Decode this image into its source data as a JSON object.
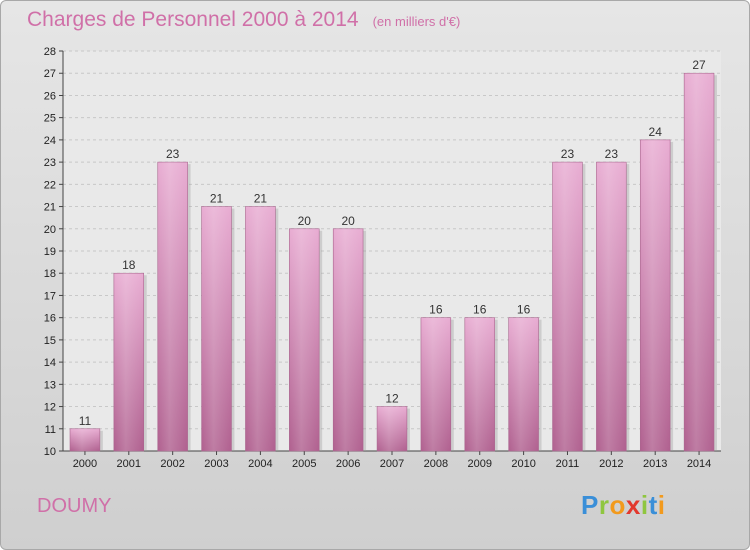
{
  "title": "Charges de Personnel 2000 à 2014",
  "subtitle": "(en milliers d'€)",
  "commune": "DOUMY",
  "logo": {
    "letters": [
      "P",
      "r",
      "o",
      "x",
      "i",
      "t",
      "i"
    ],
    "colors": [
      "#3a8fd8",
      "#8fc63f",
      "#f29a1d",
      "#e2382d",
      "#8fc63f",
      "#3a8fd8",
      "#f29a1d"
    ]
  },
  "chart_data": {
    "type": "bar",
    "categories": [
      "2000",
      "2001",
      "2002",
      "2003",
      "2004",
      "2005",
      "2006",
      "2007",
      "2008",
      "2009",
      "2010",
      "2011",
      "2012",
      "2013",
      "2014"
    ],
    "values": [
      11,
      18,
      23,
      21,
      21,
      20,
      20,
      12,
      16,
      16,
      16,
      23,
      23,
      24,
      27
    ],
    "data_labels": [
      "11",
      "18",
      "23",
      "21",
      "21",
      "20",
      "20",
      "12",
      "16",
      "16",
      "16",
      "23",
      "23",
      "24",
      "27"
    ],
    "title": "Charges de Personnel 2000 à 2014",
    "ylim": [
      10,
      28
    ],
    "y_ticks": [
      10,
      11,
      12,
      13,
      14,
      15,
      16,
      17,
      18,
      19,
      20,
      21,
      22,
      23,
      24,
      25,
      26,
      27,
      28
    ],
    "y_tick_labels": [
      "10",
      "11",
      "12",
      "13",
      "14",
      "15",
      "16",
      "17",
      "18",
      "19",
      "20",
      "21",
      "22",
      "23",
      "24",
      "25",
      "26",
      "27",
      "28"
    ],
    "grid": true,
    "bar_color": "#d88bbb"
  }
}
